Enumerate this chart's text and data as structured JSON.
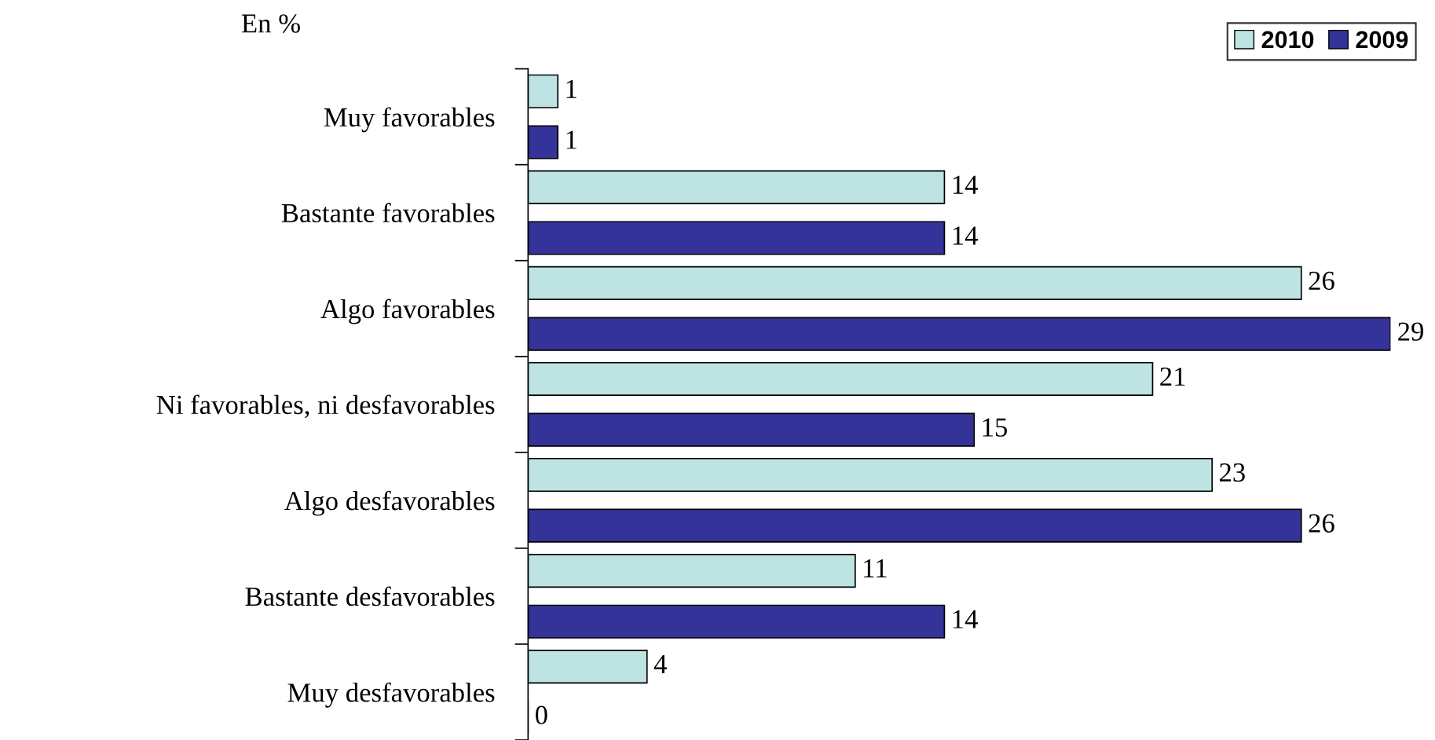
{
  "chart_data": {
    "type": "bar",
    "orientation": "horizontal",
    "annotations": [
      "En %"
    ],
    "categories": [
      "Muy favorables",
      "Bastante favorables",
      "Algo favorables",
      "Ni favorables, ni desfavorables",
      "Algo desfavorables",
      "Bastante desfavorables",
      "Muy desfavorables"
    ],
    "series": [
      {
        "name": "2010",
        "color": "#bde3e3",
        "values": [
          1,
          14,
          26,
          21,
          23,
          11,
          4
        ]
      },
      {
        "name": "2009",
        "color": "#333399",
        "values": [
          1,
          14,
          29,
          15,
          26,
          14,
          0
        ]
      }
    ],
    "data_labels": true,
    "legend": "top right",
    "grid": false
  }
}
